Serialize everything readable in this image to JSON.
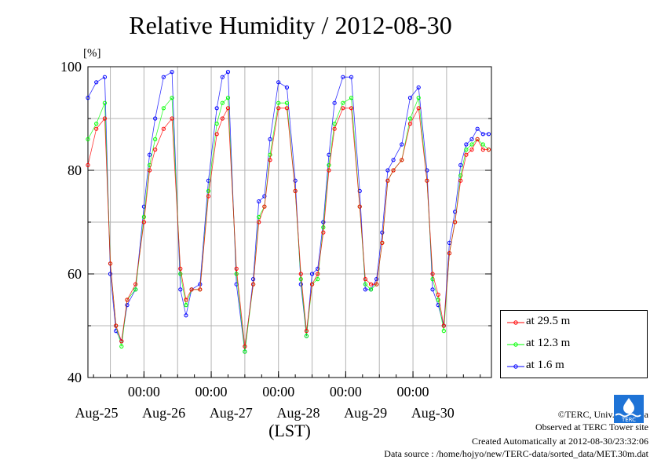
{
  "chart_data": {
    "type": "line",
    "title": "Relative Humidity / 2012-08-30",
    "ylabel": "[%]",
    "xlabel": "(LST)",
    "ylim": [
      40,
      100
    ],
    "yticks": [
      "40",
      "60",
      "80",
      "100"
    ],
    "y_tick_values": [
      40,
      60,
      80,
      100
    ],
    "xlim_hours_from_start": [
      0,
      144
    ],
    "x_time_ticks": [
      "00:00",
      "00:00",
      "00:00",
      "00:00",
      "00:00"
    ],
    "x_date_labels": [
      "Aug-25",
      "Aug-26",
      "Aug-27",
      "Aug-28",
      "Aug-29",
      "Aug-30"
    ],
    "grid": true,
    "legend_position": "lower-right-outside",
    "series": [
      {
        "name": "at 29.5 m",
        "color": "#ff0000",
        "x": [
          0,
          3,
          6,
          8,
          10,
          12,
          14,
          17,
          20,
          22,
          24,
          27,
          30,
          33,
          35,
          37,
          40,
          43,
          46,
          48,
          50,
          53,
          56,
          59,
          61,
          63,
          65,
          68,
          71,
          74,
          76,
          78,
          80,
          82,
          84,
          86,
          88,
          91,
          94,
          97,
          99,
          101,
          103,
          105,
          107,
          109,
          112,
          115,
          118,
          121,
          123,
          125,
          127,
          129,
          131,
          133,
          135,
          137,
          139,
          141,
          143
        ],
        "y": [
          81,
          88,
          90,
          62,
          50,
          47,
          55,
          58,
          70,
          80,
          84,
          88,
          90,
          61,
          55,
          57,
          57,
          75,
          87,
          90,
          92,
          61,
          46,
          58,
          70,
          73,
          82,
          92,
          92,
          76,
          60,
          49,
          58,
          60,
          68,
          80,
          88,
          92,
          92,
          73,
          59,
          58,
          58,
          66,
          78,
          80,
          82,
          89,
          92,
          78,
          60,
          56,
          50,
          64,
          70,
          78,
          83,
          84,
          86,
          84,
          84
        ]
      },
      {
        "name": "at 12.3 m",
        "color": "#00ff00",
        "x": [
          0,
          3,
          6,
          8,
          10,
          12,
          14,
          17,
          20,
          22,
          24,
          27,
          30,
          33,
          35,
          37,
          40,
          43,
          46,
          48,
          50,
          53,
          56,
          59,
          61,
          63,
          65,
          68,
          71,
          74,
          76,
          78,
          80,
          82,
          84,
          86,
          88,
          91,
          94,
          97,
          99,
          101,
          103,
          105,
          107,
          109,
          112,
          115,
          118,
          121,
          123,
          125,
          127,
          129,
          131,
          133,
          135,
          137,
          139,
          141,
          143
        ],
        "y": [
          86,
          89,
          93,
          62,
          50,
          46,
          55,
          57,
          71,
          81,
          86,
          92,
          94,
          60,
          54,
          57,
          57,
          76,
          89,
          93,
          94,
          60,
          45,
          58,
          71,
          73,
          83,
          93,
          93,
          76,
          59,
          48,
          58,
          59,
          69,
          81,
          89,
          93,
          94,
          73,
          58,
          57,
          58,
          66,
          78,
          80,
          82,
          90,
          94,
          78,
          59,
          55,
          49,
          64,
          70,
          79,
          84,
          85,
          86,
          85,
          84
        ]
      },
      {
        "name": "at 1.6 m",
        "color": "#0000ff",
        "x": [
          0,
          3,
          6,
          8,
          10,
          12,
          14,
          17,
          20,
          22,
          24,
          27,
          30,
          33,
          35,
          37,
          40,
          43,
          46,
          48,
          50,
          53,
          56,
          59,
          61,
          63,
          65,
          68,
          71,
          74,
          76,
          78,
          80,
          82,
          84,
          86,
          88,
          91,
          94,
          97,
          99,
          101,
          103,
          105,
          107,
          109,
          112,
          115,
          118,
          121,
          123,
          125,
          127,
          129,
          131,
          133,
          135,
          137,
          139,
          141,
          143
        ],
        "y": [
          94,
          97,
          98,
          60,
          49,
          47,
          54,
          57,
          73,
          83,
          90,
          98,
          99,
          57,
          52,
          57,
          58,
          78,
          92,
          98,
          99,
          58,
          45,
          59,
          74,
          75,
          86,
          97,
          96,
          78,
          58,
          48,
          60,
          61,
          70,
          83,
          93,
          98,
          98,
          76,
          57,
          57,
          59,
          68,
          80,
          82,
          85,
          94,
          96,
          80,
          57,
          54,
          50,
          66,
          72,
          81,
          85,
          86,
          88,
          87,
          87
        ]
      }
    ]
  },
  "credits": {
    "copyright": "©TERC, Univ. Tsukuba",
    "observed": "Observed at TERC Tower site",
    "created": "Created Automatically at 2012-08-30/23:32:06",
    "source": "Data source : /home/hojyo/new/TERC-data/sorted_data/MET.30m.dat"
  },
  "logo_text": "TERC"
}
